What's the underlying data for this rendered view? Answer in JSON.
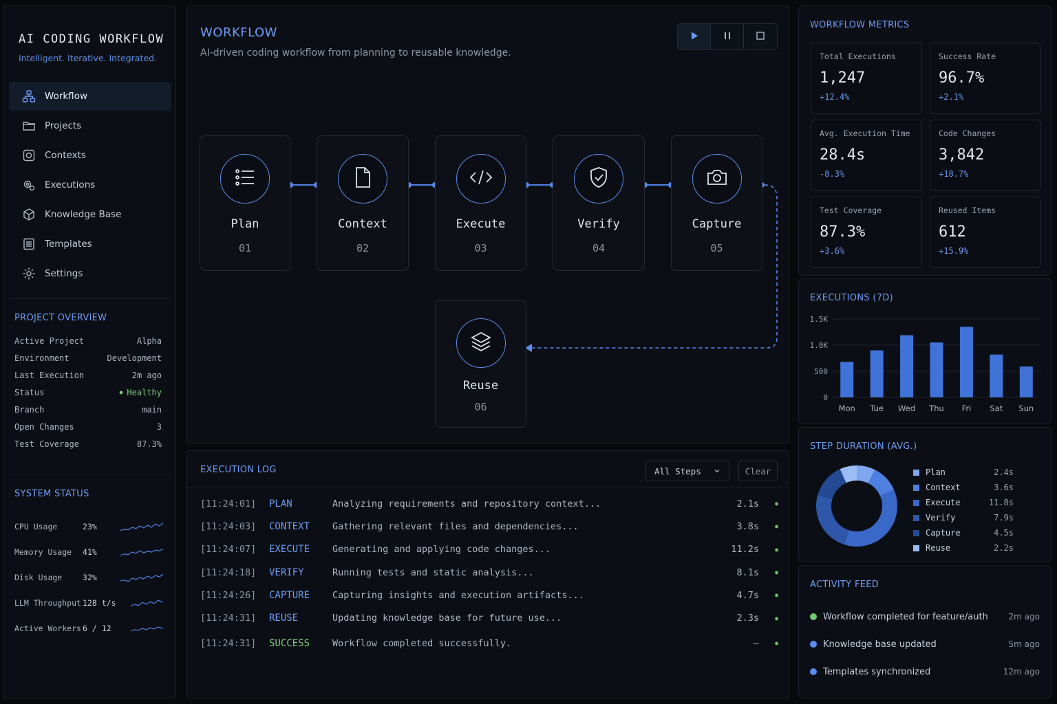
{
  "app": {
    "title": "AI CODING WORKFLOW",
    "tagline": "Intelligent. Iterative. Integrated."
  },
  "nav": [
    {
      "label": "Workflow",
      "icon": "workflow-icon",
      "active": true
    },
    {
      "label": "Projects",
      "icon": "folder-icon"
    },
    {
      "label": "Contexts",
      "icon": "context-icon"
    },
    {
      "label": "Executions",
      "icon": "gears-icon"
    },
    {
      "label": "Knowledge Base",
      "icon": "cube-icon"
    },
    {
      "label": "Templates",
      "icon": "document-icon"
    },
    {
      "label": "Settings",
      "icon": "gear-icon"
    }
  ],
  "overview": {
    "title": "PROJECT OVERVIEW",
    "rows": [
      {
        "label": "Active Project",
        "value": "Alpha"
      },
      {
        "label": "Environment",
        "value": "Development"
      },
      {
        "label": "Last Execution",
        "value": "2m ago"
      },
      {
        "label": "Status",
        "value": "Healthy"
      },
      {
        "label": "Branch",
        "value": "main"
      },
      {
        "label": "Open Changes",
        "value": "3"
      },
      {
        "label": "Test Coverage",
        "value": "87.3%"
      }
    ]
  },
  "system": {
    "title": "SYSTEM STATUS",
    "rows": [
      {
        "label": "CPU Usage",
        "value": "23%"
      },
      {
        "label": "Memory Usage",
        "value": "41%"
      },
      {
        "label": "Disk Usage",
        "value": "32%"
      },
      {
        "label": "LLM Throughput",
        "value": "128 t/s"
      },
      {
        "label": "Active Workers",
        "value": "6 / 12"
      }
    ]
  },
  "workflow": {
    "title": "WORKFLOW",
    "subtitle": "AI-driven coding workflow from planning to reusable knowledge.",
    "steps": [
      {
        "name": "Plan",
        "num": "01",
        "icon": "list-icon"
      },
      {
        "name": "Context",
        "num": "02",
        "icon": "file-icon"
      },
      {
        "name": "Execute",
        "num": "03",
        "icon": "code-icon"
      },
      {
        "name": "Verify",
        "num": "04",
        "icon": "shield-check-icon"
      },
      {
        "name": "Capture",
        "num": "05",
        "icon": "camera-icon"
      },
      {
        "name": "Reuse",
        "num": "06",
        "icon": "layers-icon"
      }
    ]
  },
  "log": {
    "title": "EXECUTION LOG",
    "filter": "All Steps",
    "clear": "Clear",
    "rows": [
      {
        "time": "[11:24:01]",
        "step": "PLAN",
        "msg": "Analyzing requirements and repository context...",
        "dur": "2.1s"
      },
      {
        "time": "[11:24:03]",
        "step": "CONTEXT",
        "msg": "Gathering relevant files and dependencies...",
        "dur": "3.8s"
      },
      {
        "time": "[11:24:07]",
        "step": "EXECUTE",
        "msg": "Generating and applying code changes...",
        "dur": "11.2s"
      },
      {
        "time": "[11:24:18]",
        "step": "VERIFY",
        "msg": "Running tests and static analysis...",
        "dur": "8.1s"
      },
      {
        "time": "[11:24:26]",
        "step": "CAPTURE",
        "msg": "Capturing insights and execution artifacts...",
        "dur": "4.7s"
      },
      {
        "time": "[11:24:31]",
        "step": "REUSE",
        "msg": "Updating knowledge base for future use...",
        "dur": "2.3s"
      },
      {
        "time": "[11:24:31]",
        "step": "SUCCESS",
        "msg": "Workflow completed successfully.",
        "dur": "—"
      }
    ]
  },
  "metrics": {
    "title": "WORKFLOW METRICS",
    "cards": [
      {
        "label": "Total Executions",
        "value": "1,247",
        "delta": "+12.4%"
      },
      {
        "label": "Success Rate",
        "value": "96.7%",
        "delta": "+2.1%"
      },
      {
        "label": "Avg. Execution Time",
        "value": "28.4s",
        "delta": "-8.3%"
      },
      {
        "label": "Code Changes",
        "value": "3,842",
        "delta": "+18.7%"
      },
      {
        "label": "Test Coverage",
        "value": "87.3%",
        "delta": "+3.6%"
      },
      {
        "label": "Reused Items",
        "value": "612",
        "delta": "+15.9%"
      }
    ]
  },
  "executions7d": {
    "title": "EXECUTIONS (7D)"
  },
  "stepDuration": {
    "title": "STEP DURATION (AVG.)"
  },
  "activity": {
    "title": "ACTIVITY FEED",
    "items": [
      {
        "text": "Workflow completed for feature/auth",
        "ago": "2m ago",
        "color": "#6ec86f"
      },
      {
        "text": "Knowledge base updated",
        "ago": "5m ago",
        "color": "#5b8cf0"
      },
      {
        "text": "Templates synchronized",
        "ago": "12m ago",
        "color": "#5b8cf0"
      }
    ]
  },
  "chart_data": [
    {
      "type": "bar",
      "title": "EXECUTIONS (7D)",
      "categories": [
        "Mon",
        "Tue",
        "Wed",
        "Thu",
        "Fri",
        "Sat",
        "Sun"
      ],
      "values": [
        680,
        900,
        1190,
        1050,
        1350,
        820,
        590
      ],
      "ylim": [
        0,
        1500
      ],
      "yticks": [
        "0",
        "500",
        "1.0K",
        "1.5K"
      ],
      "grid": true,
      "color": "#3f73d8"
    },
    {
      "type": "pie",
      "title": "STEP DURATION (AVG.)",
      "categories": [
        "Plan",
        "Context",
        "Execute",
        "Verify",
        "Capture",
        "Reuse"
      ],
      "values": [
        2.4,
        3.6,
        11.8,
        7.9,
        4.5,
        2.2
      ],
      "labels": [
        "2.4s",
        "3.6s",
        "11.8s",
        "7.9s",
        "4.5s",
        "2.2s"
      ],
      "colors": [
        "#7fa6f0",
        "#4f7fe0",
        "#3a68c8",
        "#2e57aa",
        "#234a92",
        "#9bbcf5"
      ]
    }
  ]
}
